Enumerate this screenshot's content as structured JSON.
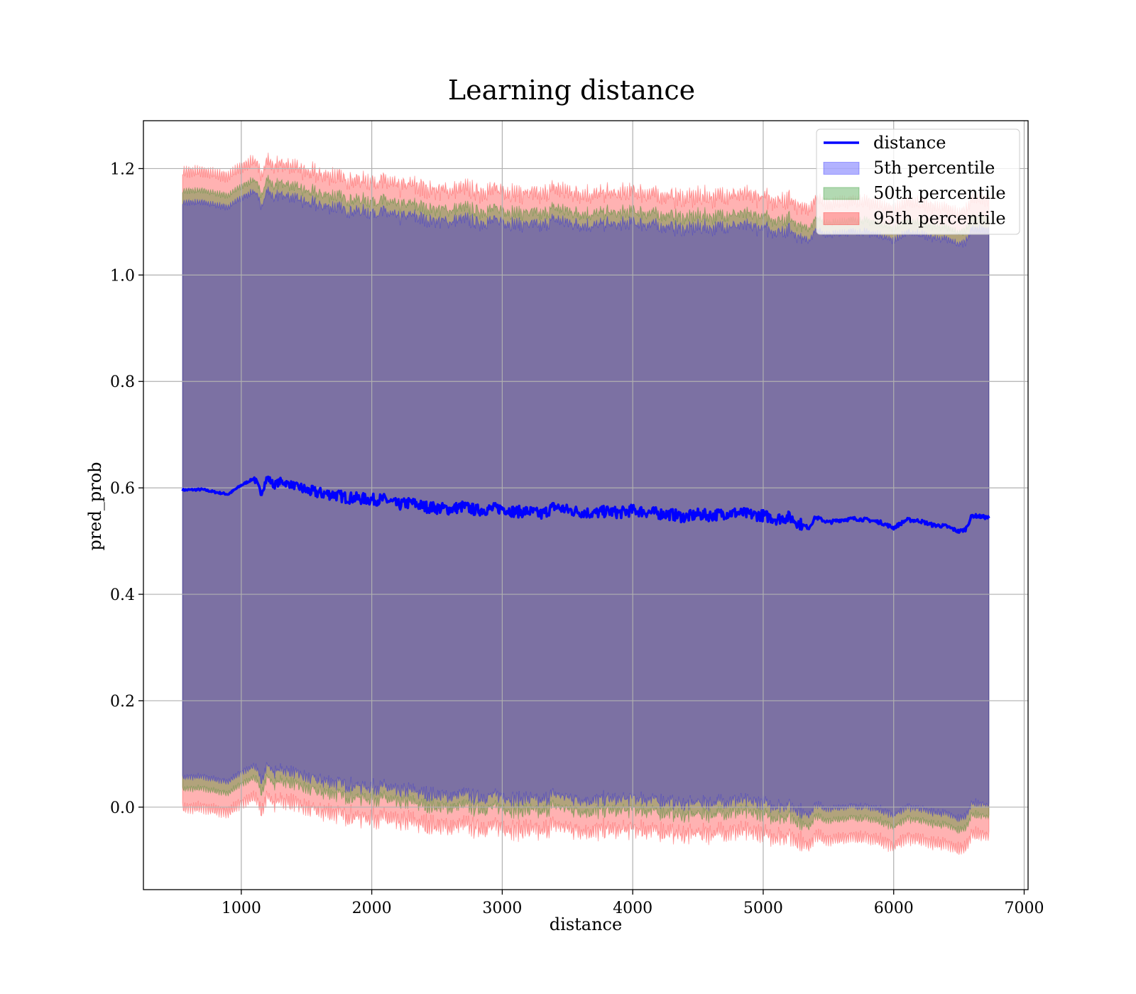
{
  "chart_data": {
    "type": "area",
    "title": "Learning distance",
    "xlabel": "distance",
    "ylabel": "pred_prob",
    "xlim": [
      250,
      7030
    ],
    "ylim": [
      -0.155,
      1.29
    ],
    "xticks": [
      1000,
      2000,
      3000,
      4000,
      5000,
      6000,
      7000
    ],
    "yticks": [
      0.0,
      0.2,
      0.4,
      0.6,
      0.8,
      1.0,
      1.2
    ],
    "xtick_labels": [
      "1000",
      "2000",
      "3000",
      "4000",
      "5000",
      "6000",
      "7000"
    ],
    "ytick_labels": [
      "0.0",
      "0.2",
      "0.4",
      "0.6",
      "0.8",
      "1.0",
      "1.2"
    ],
    "grid": true,
    "legend": {
      "position": "top-right",
      "entries": [
        "distance",
        "5th percentile",
        "50th percentile",
        "95th percentile"
      ]
    },
    "colors": {
      "line": "#0000ff",
      "band_5th": "#0000ff",
      "band_50th": "#008000",
      "band_95th": "#ff0000"
    },
    "x": [
      550,
      700,
      800,
      900,
      1000,
      1100,
      1150,
      1200,
      1250,
      1300,
      1400,
      1500,
      1600,
      1700,
      1800,
      1900,
      2000,
      2100,
      2200,
      2300,
      2400,
      2500,
      2600,
      2700,
      2800,
      2900,
      3000,
      3100,
      3200,
      3300,
      3400,
      3500,
      3600,
      3700,
      3800,
      3900,
      4000,
      4100,
      4200,
      4300,
      4400,
      4500,
      4600,
      4700,
      4800,
      4900,
      5000,
      5100,
      5200,
      5300,
      5350,
      5400,
      5500,
      5600,
      5700,
      5800,
      5900,
      6000,
      6100,
      6200,
      6300,
      6400,
      6500,
      6550,
      6600,
      6700,
      6730
    ],
    "series": [
      {
        "name": "distance",
        "values": [
          0.596,
          0.597,
          0.592,
          0.588,
          0.605,
          0.618,
          0.59,
          0.62,
          0.605,
          0.612,
          0.605,
          0.595,
          0.59,
          0.588,
          0.582,
          0.58,
          0.578,
          0.578,
          0.568,
          0.572,
          0.565,
          0.562,
          0.56,
          0.565,
          0.558,
          0.56,
          0.562,
          0.555,
          0.556,
          0.55,
          0.565,
          0.558,
          0.555,
          0.552,
          0.556,
          0.553,
          0.558,
          0.555,
          0.552,
          0.55,
          0.545,
          0.55,
          0.548,
          0.552,
          0.553,
          0.55,
          0.548,
          0.542,
          0.545,
          0.53,
          0.525,
          0.545,
          0.535,
          0.54,
          0.542,
          0.54,
          0.535,
          0.525,
          0.54,
          0.538,
          0.53,
          0.528,
          0.518,
          0.522,
          0.548,
          0.545,
          0.543
        ]
      }
    ]
  }
}
